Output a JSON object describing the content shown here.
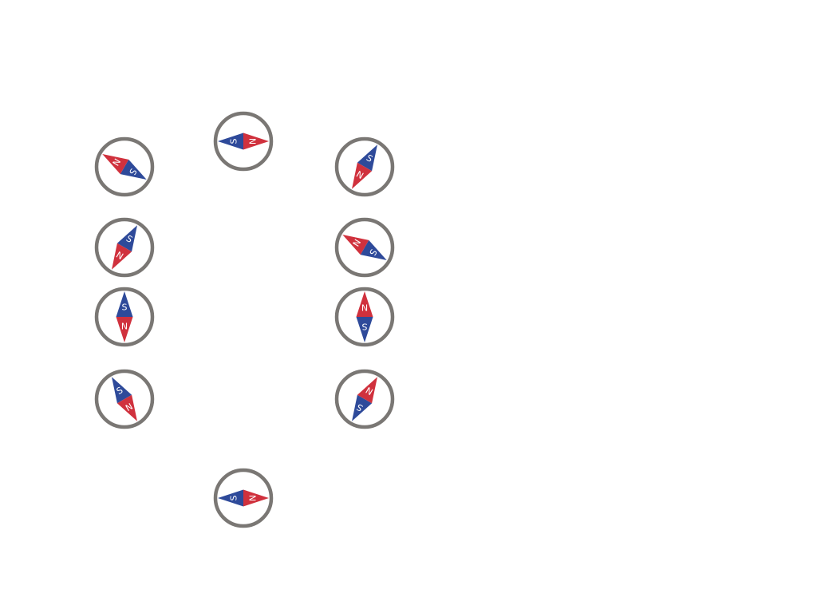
{
  "colors": {
    "ring": "#7a7774",
    "north": "#d0313d",
    "south": "#2e4a9a",
    "letter": "#ffffff",
    "background": "#ffffff"
  },
  "labels": {
    "north": "N",
    "south": "S"
  },
  "compasses": [
    {
      "id": "top-center",
      "north_bearing_deg": 90
    },
    {
      "id": "left-1",
      "north_bearing_deg": -60
    },
    {
      "id": "right-1",
      "north_bearing_deg": -150
    },
    {
      "id": "left-2",
      "north_bearing_deg": -150
    },
    {
      "id": "right-2",
      "north_bearing_deg": -60
    },
    {
      "id": "left-3",
      "north_bearing_deg": 180
    },
    {
      "id": "right-3",
      "north_bearing_deg": 0
    },
    {
      "id": "left-4",
      "north_bearing_deg": 150
    },
    {
      "id": "right-4",
      "north_bearing_deg": 30
    },
    {
      "id": "bottom-center",
      "north_bearing_deg": 90
    }
  ]
}
